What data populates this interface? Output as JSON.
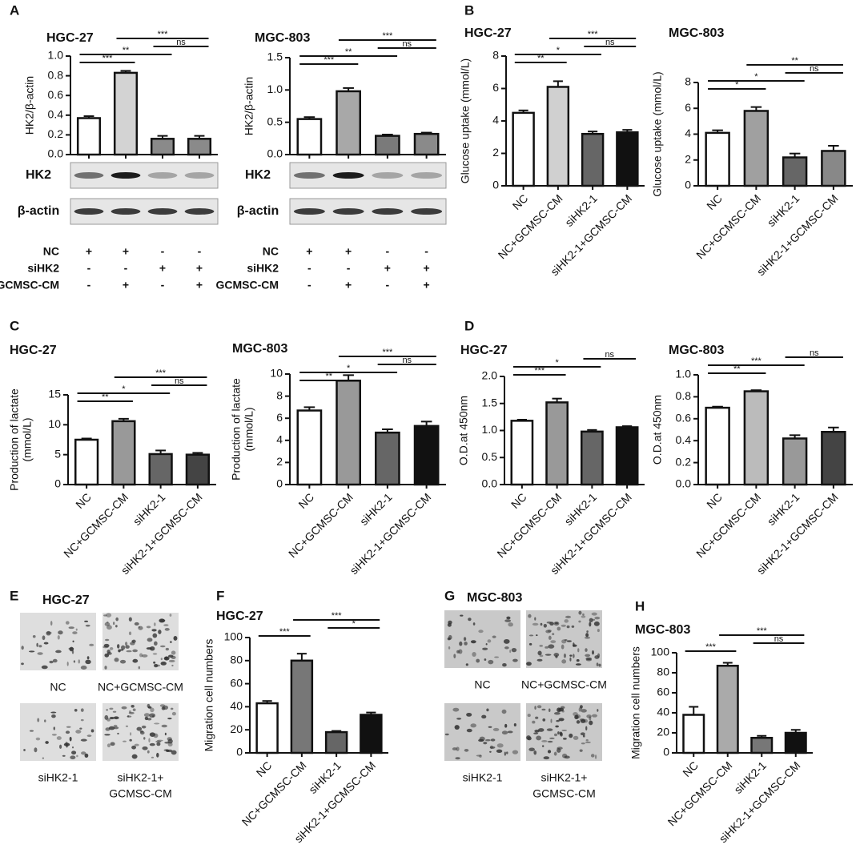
{
  "chart_data": [
    {
      "type": "bar",
      "panel": "A",
      "title": "HGC-27",
      "ylabel": "HK2/β-actin",
      "categories": [
        null,
        null,
        null,
        null
      ],
      "values": [
        0.37,
        0.83,
        0.16,
        0.16
      ],
      "errors": [
        0.02,
        0.02,
        0.03,
        0.03
      ],
      "colors": [
        "#ffffff",
        "#d3d3d3",
        "#8a8a8a",
        "#8a8a8a"
      ],
      "ylim": [
        0,
        1.0
      ],
      "yticks": [
        {
          "value": 0,
          "label": "0.0"
        },
        0.2,
        0.4,
        0.6,
        0.8,
        {
          "value": 1,
          "label": "1.0"
        }
      ],
      "brackets": [
        {
          "text": "***",
          "pair": [
            0,
            1
          ]
        },
        {
          "text": "**",
          "pair": [
            0,
            2
          ]
        },
        {
          "text": "ns",
          "pair": [
            2,
            3
          ]
        },
        {
          "text": "***",
          "pair": [
            1,
            3
          ]
        }
      ],
      "blot": [
        "HK2",
        "β-actin"
      ],
      "conditions": [
        {
          "name": "NC",
          "signs": [
            "+",
            "+",
            "-",
            "-"
          ]
        },
        {
          "name": "siHK2",
          "signs": [
            "-",
            "-",
            "+",
            "+"
          ]
        },
        {
          "name": "GCMSC-CM",
          "signs": [
            "-",
            "+",
            "-",
            "+"
          ]
        }
      ]
    },
    {
      "type": "bar",
      "title": "MGC-803",
      "ylabel": "HK2/β-actin",
      "categories": [
        null,
        null,
        null,
        null
      ],
      "values": [
        0.55,
        0.98,
        0.29,
        0.32
      ],
      "errors": [
        0.03,
        0.05,
        0.02,
        0.02
      ],
      "colors": [
        "#ffffff",
        "#a8a8a8",
        "#7a7a7a",
        "#8a8a8a"
      ],
      "ylim": [
        0,
        1.5
      ],
      "yticks": [
        {
          "value": 0,
          "label": "0.0"
        },
        0.5,
        {
          "value": 1,
          "label": "1.0"
        },
        1.5
      ],
      "brackets": [
        {
          "text": "***",
          "pair": [
            0,
            1
          ]
        },
        {
          "text": "**",
          "pair": [
            0,
            2
          ]
        },
        {
          "text": "ns",
          "pair": [
            2,
            3
          ]
        },
        {
          "text": "***",
          "pair": [
            1,
            3
          ]
        }
      ],
      "blot": [
        "HK2",
        "β-actin"
      ],
      "conditions": [
        {
          "name": "NC",
          "signs": [
            "+",
            "+",
            "-",
            "-"
          ]
        },
        {
          "name": "siHK2",
          "signs": [
            "-",
            "-",
            "+",
            "+"
          ]
        },
        {
          "name": "GCMSC-CM",
          "signs": [
            "-",
            "+",
            "-",
            "+"
          ]
        }
      ]
    },
    {
      "type": "bar",
      "panel": "B",
      "title": "HGC-27",
      "ylabel": "Glucose uptake (mmol/L)",
      "categories": [
        "NC",
        "NC+GCMSC-CM",
        "siHK2-1",
        "siHK2-1+GCMSC-CM"
      ],
      "values": [
        4.5,
        6.1,
        3.2,
        3.3
      ],
      "errors": [
        0.15,
        0.35,
        0.15,
        0.15
      ],
      "colors": [
        "#ffffff",
        "#d0d0d0",
        "#666666",
        "#111111"
      ],
      "ylim": [
        0,
        8
      ],
      "yticks": [
        0,
        2,
        4,
        6,
        8
      ],
      "brackets": [
        {
          "text": "**",
          "pair": [
            0,
            1
          ]
        },
        {
          "text": "*",
          "pair": [
            0,
            2
          ]
        },
        {
          "text": "ns",
          "pair": [
            2,
            3
          ]
        },
        {
          "text": "***",
          "pair": [
            1,
            3
          ]
        }
      ]
    },
    {
      "type": "bar",
      "title": "MGC-803",
      "ylabel": "Glucose uptake (mmol/L)",
      "categories": [
        "NC",
        "NC+GCMSC-CM",
        "siHK2-1",
        "siHK2-1+GCMSC-CM"
      ],
      "values": [
        4.1,
        5.8,
        2.2,
        2.7
      ],
      "errors": [
        0.2,
        0.3,
        0.3,
        0.4
      ],
      "colors": [
        "#ffffff",
        "#a0a0a0",
        "#666666",
        "#888888"
      ],
      "ylim": [
        0,
        8
      ],
      "yticks": [
        0,
        2,
        4,
        6,
        8
      ],
      "brackets": [
        {
          "text": "*",
          "pair": [
            0,
            1
          ]
        },
        {
          "text": "*",
          "pair": [
            0,
            2
          ]
        },
        {
          "text": "ns",
          "pair": [
            2,
            3
          ]
        },
        {
          "text": "**",
          "pair": [
            1,
            3
          ]
        }
      ]
    },
    {
      "type": "bar",
      "panel": "C",
      "title": "HGC-27",
      "ylabel": [
        "Production of lactate",
        "(mmol/L)"
      ],
      "categories": [
        "NC",
        "NC+GCMSC-CM",
        "siHK2-1",
        "siHK2-1+GCMSC-CM"
      ],
      "values": [
        7.5,
        10.6,
        5.1,
        5.0
      ],
      "errors": [
        0.2,
        0.4,
        0.6,
        0.3
      ],
      "colors": [
        "#ffffff",
        "#999999",
        "#666666",
        "#444444"
      ],
      "ylim": [
        0,
        15
      ],
      "yticks": [
        0,
        5,
        10,
        15
      ],
      "brackets": [
        {
          "text": "**",
          "pair": [
            0,
            1
          ]
        },
        {
          "text": "*",
          "pair": [
            0,
            2
          ]
        },
        {
          "text": "ns",
          "pair": [
            2,
            3
          ]
        },
        {
          "text": "***",
          "pair": [
            1,
            3
          ]
        }
      ]
    },
    {
      "type": "bar",
      "title": "MGC-803",
      "ylabel": [
        "Production of lactate",
        "(mmol/L)"
      ],
      "categories": [
        "NC",
        "NC+GCMSC-CM",
        "siHK2-1",
        "siHK2-1+GCMSC-CM"
      ],
      "values": [
        6.7,
        9.4,
        4.7,
        5.3
      ],
      "errors": [
        0.3,
        0.5,
        0.3,
        0.4
      ],
      "colors": [
        "#ffffff",
        "#999999",
        "#666666",
        "#111111"
      ],
      "ylim": [
        0,
        10
      ],
      "yticks": [
        0,
        2,
        4,
        6,
        8,
        10
      ],
      "brackets": [
        {
          "text": "**",
          "pair": [
            0,
            1
          ]
        },
        {
          "text": "*",
          "pair": [
            0,
            2
          ]
        },
        {
          "text": "ns",
          "pair": [
            2,
            3
          ]
        },
        {
          "text": "***",
          "pair": [
            1,
            3
          ]
        }
      ]
    },
    {
      "type": "bar",
      "panel": "D",
      "title": "HGC-27",
      "ylabel": "O.D.at 450nm",
      "categories": [
        "NC",
        "NC+GCMSC-CM",
        "siHK2-1",
        "siHK2-1+GCMSC-CM"
      ],
      "values": [
        1.18,
        1.52,
        0.98,
        1.06
      ],
      "errors": [
        0.02,
        0.07,
        0.03,
        0.02
      ],
      "colors": [
        "#ffffff",
        "#999999",
        "#666666",
        "#111111"
      ],
      "ylim": [
        0,
        2.0
      ],
      "yticks": [
        {
          "value": 0,
          "label": "0.0"
        },
        0.5,
        {
          "value": 1,
          "label": "1.0"
        },
        1.5,
        {
          "value": 2,
          "label": "2.0"
        }
      ],
      "brackets": [
        {
          "text": "***",
          "pair": [
            0,
            1
          ]
        },
        {
          "text": "*",
          "pair": [
            0,
            2
          ]
        },
        {
          "text": "ns",
          "pair": [
            2,
            3
          ]
        }
      ]
    },
    {
      "type": "bar",
      "title": "MGC-803",
      "ylabel": "O.D.at 450nm",
      "categories": [
        "NC",
        "NC+GCMSC-CM",
        "siHK2-1",
        "siHK2-1+GCMSC-CM"
      ],
      "values": [
        0.7,
        0.85,
        0.42,
        0.48
      ],
      "errors": [
        0.01,
        0.01,
        0.03,
        0.04
      ],
      "colors": [
        "#ffffff",
        "#bbbbbb",
        "#999999",
        "#444444"
      ],
      "ylim": [
        0,
        1.0
      ],
      "yticks": [
        {
          "value": 0,
          "label": "0.0"
        },
        0.2,
        0.4,
        0.6,
        0.8,
        {
          "value": 1,
          "label": "1.0"
        }
      ],
      "brackets": [
        {
          "text": "**",
          "pair": [
            0,
            1
          ]
        },
        {
          "text": "***",
          "pair": [
            0,
            2
          ]
        },
        {
          "text": "ns",
          "pair": [
            2,
            3
          ]
        }
      ]
    },
    {
      "type": "bar",
      "panel": "F",
      "title": "HGC-27",
      "ylabel": "Migration cell numbers",
      "categories": [
        "NC",
        "NC+GCMSC-CM",
        "siHK2-1",
        "siHK2-1+GCMSC-CM"
      ],
      "values": [
        43,
        80,
        18,
        33
      ],
      "errors": [
        2,
        6,
        1,
        2
      ],
      "colors": [
        "#ffffff",
        "#777777",
        "#666666",
        "#111111"
      ],
      "ylim": [
        0,
        100
      ],
      "yticks": [
        0,
        20,
        40,
        60,
        80,
        100
      ],
      "brackets": [
        {
          "text": "***",
          "pair": [
            0,
            1
          ]
        },
        {
          "text": "*",
          "pair": [
            2,
            3
          ]
        },
        {
          "text": "***",
          "pair": [
            1,
            3
          ]
        }
      ]
    },
    {
      "type": "bar",
      "panel": "H",
      "title": "MGC-803",
      "ylabel": "Migration cell numbers",
      "categories": [
        "NC",
        "NC+GCMSC-CM",
        "siHK2-1",
        "siHK2-1+GCMSC-CM"
      ],
      "values": [
        38,
        87,
        15,
        20
      ],
      "errors": [
        8,
        3,
        2,
        3
      ],
      "colors": [
        "#ffffff",
        "#aaaaaa",
        "#777777",
        "#111111"
      ],
      "ylim": [
        0,
        100
      ],
      "yticks": [
        0,
        20,
        40,
        60,
        80,
        100
      ],
      "brackets": [
        {
          "text": "***",
          "pair": [
            0,
            1
          ]
        },
        {
          "text": "ns",
          "pair": [
            2,
            3
          ]
        },
        {
          "text": "***",
          "pair": [
            1,
            3
          ]
        }
      ]
    }
  ],
  "micrographs": [
    {
      "panel": "E",
      "title": "HGC-27",
      "labels": [
        "NC",
        "NC+GCMSC-CM",
        "siHK2-1",
        [
          "siHK2-1+",
          "GCMSC-CM"
        ]
      ]
    },
    {
      "panel": "G",
      "title": "MGC-803",
      "labels": [
        "NC",
        "NC+GCMSC-CM",
        "siHK2-1",
        [
          "siHK2-1+",
          "GCMSC-CM"
        ]
      ]
    }
  ]
}
